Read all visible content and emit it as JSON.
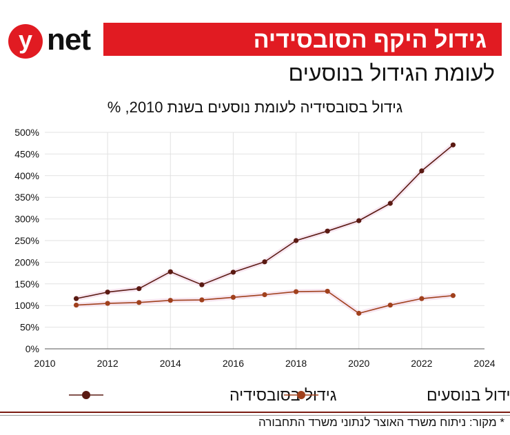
{
  "header": {
    "logo_mark": "y",
    "logo_text": "net",
    "title": "גידול היקף הסובסידיה",
    "subtitle": "לעומת הגידול בנוסעים",
    "brand_color": "#e11b22"
  },
  "footer": {
    "source": "* מקור: ניתוח משרד האוצר לנתוני משרד התחבורה"
  },
  "chart_data": {
    "type": "line",
    "title": "גידול בסובסידיה לעומת נוסעים בשנת 2010, %",
    "xlabel": "",
    "ylabel": "",
    "xlim": [
      2010,
      2024
    ],
    "ylim": [
      0,
      500
    ],
    "x_ticks": [
      2010,
      2012,
      2014,
      2016,
      2018,
      2020,
      2022,
      2024
    ],
    "y_ticks": [
      0,
      50,
      100,
      150,
      200,
      250,
      300,
      350,
      400,
      450,
      500
    ],
    "y_tick_suffix": "%",
    "grid": true,
    "legend_position": "bottom",
    "x": [
      2011,
      2012,
      2013,
      2014,
      2015,
      2016,
      2017,
      2018,
      2019,
      2020,
      2021,
      2022,
      2023
    ],
    "series": [
      {
        "name": "גידול בסובסידיה",
        "color": "#5a1a12",
        "values": [
          116,
          131,
          139,
          178,
          148,
          177,
          201,
          250,
          272,
          296,
          336,
          411,
          471
        ]
      },
      {
        "name": "גידול בנוסעים",
        "color": "#a0401c",
        "values": [
          101,
          105,
          107,
          112,
          113,
          119,
          125,
          132,
          133,
          82,
          101,
          116,
          123
        ]
      }
    ]
  }
}
